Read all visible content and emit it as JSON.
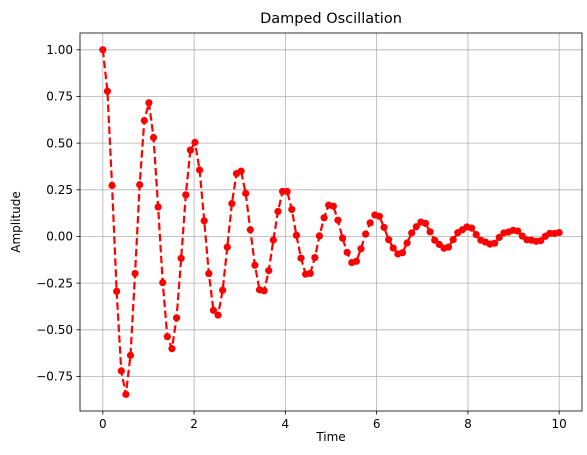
{
  "chart_data": {
    "type": "line",
    "title": "Damped Oscillation",
    "xlabel": "Time",
    "ylabel": "Amplitude",
    "xlim": [
      -0.5,
      10.5
    ],
    "ylim": [
      -0.935,
      1.09
    ],
    "xticks": [
      0,
      2,
      4,
      6,
      8,
      10
    ],
    "xtick_labels": [
      "0",
      "2",
      "4",
      "6",
      "8",
      "10"
    ],
    "yticks": [
      -0.75,
      -0.5,
      -0.25,
      0.0,
      0.25,
      0.5,
      0.75,
      1.0
    ],
    "ytick_labels": [
      "−0.75",
      "−0.50",
      "−0.25",
      "0.00",
      "0.25",
      "0.50",
      "0.75",
      "1.00"
    ],
    "grid": true,
    "colors": {
      "series": "#ff0000"
    },
    "series": [
      {
        "line_style": "dashed",
        "marker": "circle",
        "x": [
          0.0,
          0.101,
          0.202,
          0.303,
          0.404,
          0.505,
          0.606,
          0.707,
          0.808,
          0.909,
          1.01,
          1.111,
          1.212,
          1.313,
          1.414,
          1.515,
          1.616,
          1.717,
          1.818,
          1.919,
          2.02,
          2.121,
          2.222,
          2.323,
          2.424,
          2.525,
          2.626,
          2.727,
          2.828,
          2.929,
          3.03,
          3.131,
          3.232,
          3.333,
          3.434,
          3.535,
          3.636,
          3.737,
          3.838,
          3.939,
          4.04,
          4.141,
          4.242,
          4.343,
          4.444,
          4.545,
          4.646,
          4.747,
          4.848,
          4.949,
          5.051,
          5.152,
          5.253,
          5.354,
          5.455,
          5.556,
          5.657,
          5.758,
          5.859,
          5.96,
          6.061,
          6.162,
          6.263,
          6.364,
          6.465,
          6.566,
          6.667,
          6.768,
          6.869,
          6.97,
          7.071,
          7.172,
          7.273,
          7.374,
          7.475,
          7.576,
          7.677,
          7.778,
          7.879,
          7.98,
          8.081,
          8.182,
          8.283,
          8.384,
          8.485,
          8.586,
          8.687,
          8.788,
          8.889,
          8.99,
          9.091,
          9.192,
          9.293,
          9.394,
          9.495,
          9.596,
          9.697,
          9.798,
          9.899,
          10.0
        ],
        "y": [
          1.0,
          0.778,
          0.273,
          -0.294,
          -0.72,
          -0.846,
          -0.637,
          -0.198,
          0.277,
          0.621,
          0.716,
          0.53,
          0.158,
          -0.247,
          -0.537,
          -0.601,
          -0.436,
          -0.117,
          0.223,
          0.463,
          0.504,
          0.356,
          0.084,
          -0.199,
          -0.396,
          -0.421,
          -0.288,
          -0.057,
          0.176,
          0.337,
          0.35,
          0.231,
          0.036,
          -0.154,
          -0.286,
          -0.291,
          -0.183,
          -0.019,
          0.134,
          0.241,
          0.241,
          0.145,
          0.006,
          -0.116,
          -0.202,
          -0.198,
          -0.113,
          0.003,
          0.1,
          0.168,
          0.162,
          0.087,
          -0.009,
          -0.085,
          -0.14,
          -0.133,
          -0.066,
          0.013,
          0.073,
          0.115,
          0.108,
          0.049,
          -0.017,
          -0.062,
          -0.094,
          -0.087,
          -0.035,
          0.019,
          0.052,
          0.077,
          0.07,
          0.025,
          -0.02,
          -0.043,
          -0.063,
          -0.057,
          -0.017,
          0.02,
          0.036,
          0.051,
          0.045,
          0.01,
          -0.02,
          -0.03,
          -0.041,
          -0.036,
          -0.005,
          0.019,
          0.024,
          0.033,
          0.029,
          0.002,
          -0.018,
          -0.02,
          -0.026,
          -0.023,
          0.001,
          0.017,
          0.016,
          0.021
        ]
      }
    ]
  }
}
